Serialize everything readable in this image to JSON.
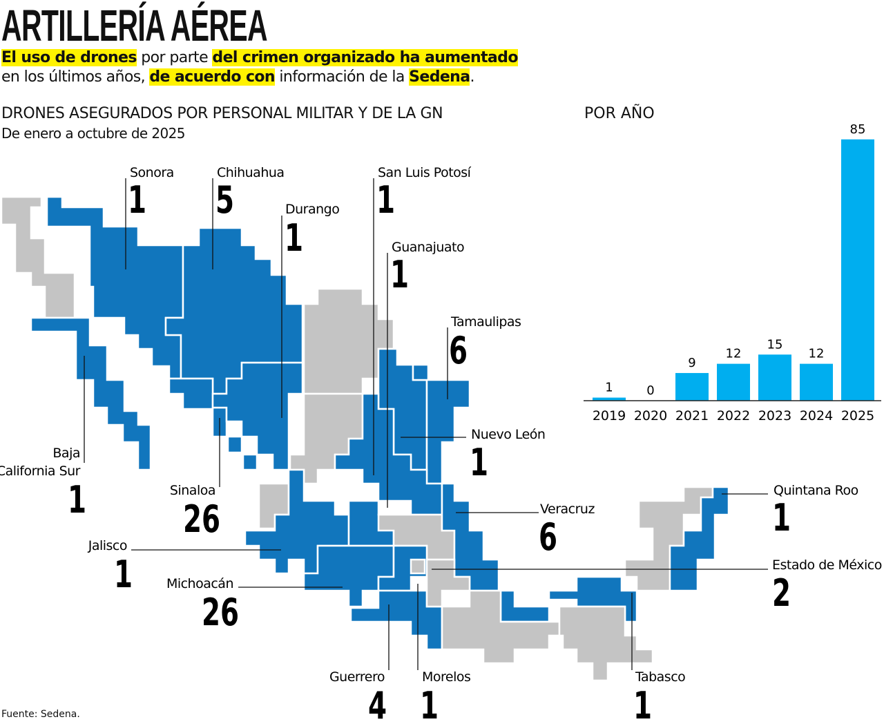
{
  "header": {
    "title": "ARTILLERÍA AÉREA",
    "subtitle": [
      [
        {
          "text": "El uso de drones",
          "highlight": true
        },
        {
          "text": "por parte",
          "highlight": false
        },
        {
          "text": "del crimen organizado ha aumentado",
          "highlight": true
        }
      ],
      [
        {
          "text": "en los últimos años,",
          "highlight": false
        },
        {
          "text": "de acuerdo con",
          "highlight": true
        },
        {
          "text": "información de la",
          "highlight": false
        },
        {
          "text": "Sedena",
          "highlight": true
        },
        {
          "text": ".",
          "highlight": false
        }
      ]
    ]
  },
  "map": {
    "title": "DRONES ASEGURADOS POR PERSONAL MILITAR Y DE LA GN",
    "subtitle": "De enero a octubre de 2025",
    "states": [
      {
        "name": "Sonora",
        "value": 1
      },
      {
        "name": "Chihuahua",
        "value": 5
      },
      {
        "name": "Durango",
        "value": 1
      },
      {
        "name": "San Luis Potosí",
        "value": 1
      },
      {
        "name": "Guanajuato",
        "value": 1
      },
      {
        "name": "Tamaulipas",
        "value": 6
      },
      {
        "name": "Nuevo León",
        "value": 1
      },
      {
        "name": "Baja California Sur",
        "value": 1
      },
      {
        "name": "Sinaloa",
        "value": 26
      },
      {
        "name": "Jalisco",
        "value": 1
      },
      {
        "name": "Michoacán",
        "value": 26
      },
      {
        "name": "Veracruz",
        "value": 6
      },
      {
        "name": "Quintana Roo",
        "value": 1
      },
      {
        "name": "Estado de México",
        "value": 2
      },
      {
        "name": "Guerrero",
        "value": 4
      },
      {
        "name": "Morelos",
        "value": 1
      },
      {
        "name": "Tabasco",
        "value": 1
      }
    ]
  },
  "chart_data": {
    "type": "bar",
    "title": "POR AÑO",
    "categories": [
      "2019",
      "2020",
      "2021",
      "2022",
      "2023",
      "2024",
      "2025"
    ],
    "values": [
      1,
      0,
      9,
      12,
      15,
      12,
      85
    ],
    "color": "#00aeef"
  },
  "source": "Fuente: Sedena."
}
